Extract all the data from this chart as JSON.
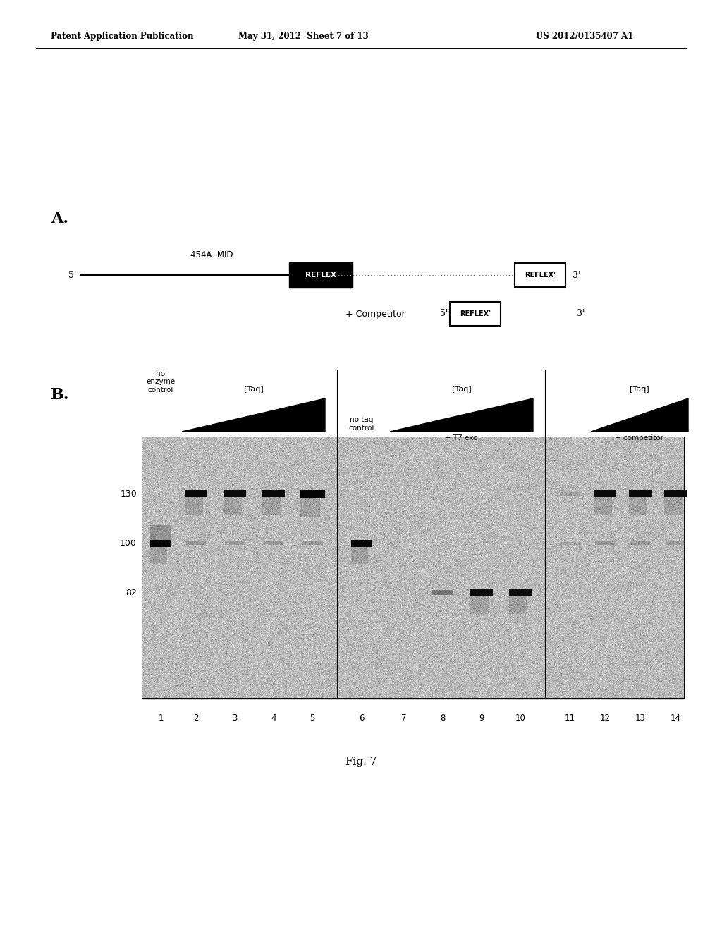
{
  "header_left": "Patent Application Publication",
  "header_middle": "May 31, 2012  Sheet 7 of 13",
  "header_right": "US 2012/0135407 A1",
  "section_A_label": "A.",
  "section_B_label": "B.",
  "fig_caption": "Fig. 7",
  "background_color": "#ffffff"
}
